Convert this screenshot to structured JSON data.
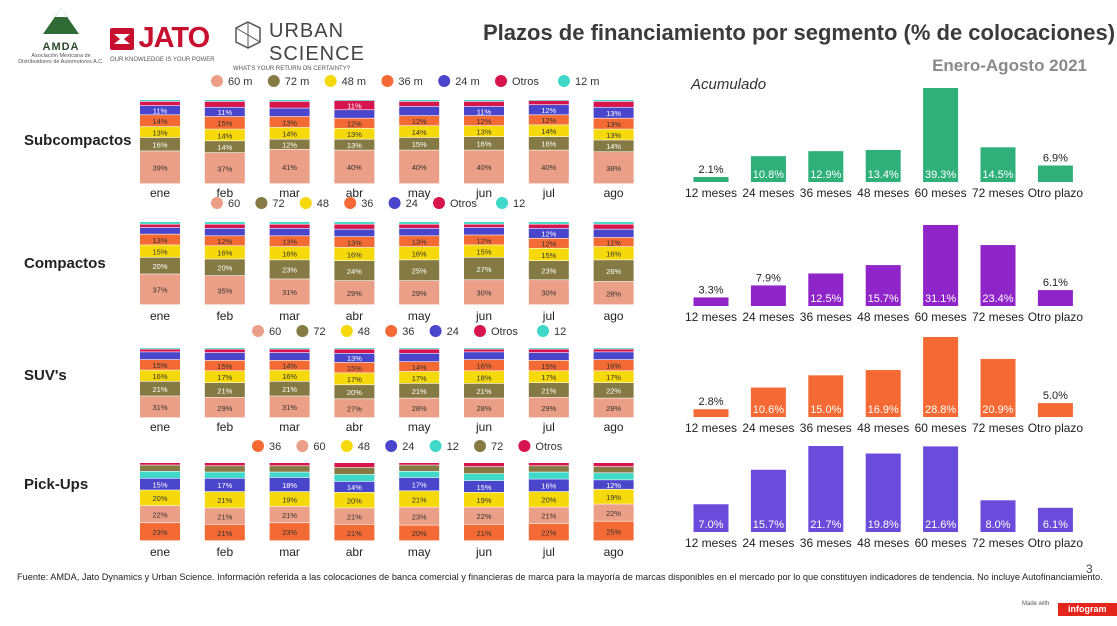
{
  "header": {
    "title": "Plazos de financiamiento por segmento (% de colocaciones)",
    "subtitle": "Enero-Agosto  2021",
    "acumulado_label": "Acumulado"
  },
  "logos": {
    "amda_name": "AMDA",
    "amda_sub": "Asociación Mexicana de Distribuidores de Automotores A.C.",
    "jato_name": "JATO",
    "jato_tag": "OUR KNOWLEDGE IS YOUR POWER",
    "urban_name": "URBAN SCIENCE",
    "urban_tag": "WHAT'S YOUR RETURN ON CERTAINTY?"
  },
  "footer": {
    "source": "Fuente: AMDA, Jato Dynamics y Urban Science. Información referida a las colocaciones de banca comercial y financieras de marca para la mayoría de marcas disponibles en el mercado por lo que constituyen indicadores de tendencia. No incluye Autofinanciamiento.",
    "page_number": "3",
    "made_with": "Made with",
    "brand": "infogram"
  },
  "colors": {
    "60": "#ea9f86",
    "72": "#857a44",
    "48": "#f6d90b",
    "36": "#f46a34",
    "24": "#4a46cc",
    "Otros": "#d6154f",
    "12": "#3fd8c9"
  },
  "chart_data": [
    {
      "type": "bar",
      "stacked": true,
      "segment": "Subcompactos",
      "categories": [
        "ene",
        "feb",
        "mar",
        "abr",
        "may",
        "jun",
        "jul",
        "ago"
      ],
      "legend": [
        "60 m",
        "72 m",
        "48 m",
        "36 m",
        "24 m",
        "Otros",
        "12 m"
      ],
      "series": [
        {
          "key": "60",
          "name": "60 m",
          "values": [
            39,
            37,
            41,
            40,
            40,
            40,
            40,
            38
          ]
        },
        {
          "key": "72",
          "name": "72 m",
          "values": [
            16,
            14,
            12,
            13,
            15,
            16,
            16,
            14
          ]
        },
        {
          "key": "48",
          "name": "48 m",
          "values": [
            13,
            14,
            14,
            13,
            14,
            13,
            14,
            13
          ]
        },
        {
          "key": "36",
          "name": "36 m",
          "values": [
            14,
            15,
            13,
            12,
            12,
            12,
            12,
            13
          ]
        },
        {
          "key": "24",
          "name": "24 m",
          "values": [
            11,
            11,
            10,
            10,
            11,
            11,
            12,
            13
          ]
        },
        {
          "key": "Otros",
          "name": "Otros",
          "values": [
            5,
            7,
            8,
            11,
            6,
            6,
            5,
            7
          ]
        },
        {
          "key": "12",
          "name": "12 m",
          "values": [
            2,
            2,
            2,
            1,
            2,
            2,
            1,
            2
          ]
        }
      ],
      "labels_shown": {
        "60": [
          39,
          37,
          41,
          40,
          40,
          40,
          40,
          38
        ],
        "72": [
          16,
          14,
          12,
          13,
          15,
          16,
          16,
          14
        ],
        "48": [
          13,
          14,
          14,
          13,
          14,
          13,
          14,
          13
        ],
        "36": [
          14,
          15,
          13,
          12,
          12,
          12,
          12,
          13
        ],
        "24": [
          11,
          11,
          null,
          null,
          null,
          11,
          12,
          13
        ],
        "Otros": [
          null,
          null,
          null,
          11,
          null,
          null,
          null,
          null
        ]
      },
      "accumulated": {
        "categories": [
          "12 meses",
          "24 meses",
          "36 meses",
          "48 meses",
          "60 meses",
          "72 meses",
          "Otro plazo"
        ],
        "values": [
          2.1,
          10.8,
          12.9,
          13.4,
          39.3,
          14.5,
          6.9
        ],
        "labels": [
          "2.1%",
          "10.8%",
          "12.9%",
          "13.4%",
          "39.3%",
          "14.5%",
          "6.9%"
        ],
        "color": "#2fb07a"
      }
    },
    {
      "type": "bar",
      "stacked": true,
      "segment": "Compactos",
      "categories": [
        "ene",
        "feb",
        "mar",
        "abr",
        "may",
        "jun",
        "jul",
        "ago"
      ],
      "legend": [
        "60",
        "72",
        "48",
        "36",
        "24",
        "Otros",
        "12"
      ],
      "series": [
        {
          "key": "60",
          "name": "60",
          "values": [
            37,
            35,
            31,
            29,
            29,
            30,
            30,
            28
          ]
        },
        {
          "key": "72",
          "name": "72",
          "values": [
            20,
            20,
            23,
            24,
            25,
            27,
            23,
            26
          ]
        },
        {
          "key": "48",
          "name": "48",
          "values": [
            15,
            16,
            16,
            16,
            16,
            15,
            15,
            16
          ]
        },
        {
          "key": "36",
          "name": "36",
          "values": [
            13,
            12,
            13,
            13,
            13,
            12,
            12,
            11
          ]
        },
        {
          "key": "24",
          "name": "24",
          "values": [
            8,
            9,
            9,
            9,
            9,
            9,
            12,
            10
          ]
        },
        {
          "key": "Otros",
          "name": "Otros",
          "values": [
            4,
            5,
            5,
            6,
            5,
            4,
            5,
            6
          ]
        },
        {
          "key": "12",
          "name": "12",
          "values": [
            3,
            3,
            3,
            3,
            3,
            3,
            3,
            3
          ]
        }
      ],
      "labels_shown": {
        "60": [
          37,
          35,
          31,
          29,
          29,
          30,
          30,
          28
        ],
        "72": [
          20,
          20,
          23,
          24,
          25,
          27,
          23,
          26
        ],
        "48": [
          15,
          16,
          16,
          16,
          16,
          15,
          15,
          16
        ],
        "36": [
          13,
          12,
          13,
          13,
          13,
          12,
          12,
          11
        ],
        "24": [
          null,
          null,
          null,
          null,
          null,
          null,
          12,
          null
        ]
      },
      "accumulated": {
        "categories": [
          "12 meses",
          "24 meses",
          "36 meses",
          "48 meses",
          "60 meses",
          "72 meses",
          "Otro plazo"
        ],
        "values": [
          3.3,
          7.9,
          12.5,
          15.7,
          31.1,
          23.4,
          6.1
        ],
        "labels": [
          "3.3%",
          "7.9%",
          "12.5%",
          "15.7%",
          "31.1%",
          "23.4%",
          "6.1%"
        ],
        "color": "#8f25c9"
      }
    },
    {
      "type": "bar",
      "stacked": true,
      "segment": "SUV's",
      "categories": [
        "ene",
        "feb",
        "mar",
        "abr",
        "may",
        "jun",
        "jul",
        "ago"
      ],
      "legend": [
        "60",
        "72",
        "48",
        "36",
        "24",
        "Otros",
        "12"
      ],
      "series": [
        {
          "key": "60",
          "name": "60",
          "values": [
            31,
            29,
            31,
            27,
            28,
            28,
            29,
            28
          ]
        },
        {
          "key": "72",
          "name": "72",
          "values": [
            21,
            21,
            21,
            20,
            21,
            21,
            21,
            22
          ]
        },
        {
          "key": "48",
          "name": "48",
          "values": [
            16,
            17,
            16,
            17,
            17,
            18,
            17,
            17
          ]
        },
        {
          "key": "36",
          "name": "36",
          "values": [
            15,
            15,
            14,
            15,
            14,
            16,
            15,
            16
          ]
        },
        {
          "key": "24",
          "name": "24",
          "values": [
            11,
            11,
            11,
            13,
            12,
            11,
            11,
            11
          ]
        },
        {
          "key": "Otros",
          "name": "Otros",
          "values": [
            4,
            5,
            5,
            6,
            6,
            4,
            5,
            4
          ]
        },
        {
          "key": "12",
          "name": "12",
          "values": [
            2,
            2,
            2,
            2,
            2,
            2,
            2,
            2
          ]
        }
      ],
      "labels_shown": {
        "60": [
          31,
          29,
          31,
          27,
          28,
          28,
          29,
          28
        ],
        "72": [
          21,
          21,
          21,
          20,
          21,
          21,
          21,
          22
        ],
        "48": [
          16,
          17,
          16,
          17,
          17,
          18,
          17,
          17
        ],
        "36": [
          15,
          15,
          14,
          15,
          14,
          16,
          15,
          16
        ],
        "24": [
          null,
          null,
          null,
          13,
          null,
          null,
          null,
          null
        ]
      },
      "accumulated": {
        "categories": [
          "12 meses",
          "24 meses",
          "36 meses",
          "48 meses",
          "60 meses",
          "72 meses",
          "Otro plazo"
        ],
        "values": [
          2.8,
          10.6,
          15.0,
          16.9,
          28.8,
          20.9,
          5.0
        ],
        "labels": [
          "2.8%",
          "10.6%",
          "15.0%",
          "16.9%",
          "28.8%",
          "20.9%",
          "5.0%"
        ],
        "color": "#f56a34"
      }
    },
    {
      "type": "bar",
      "stacked": true,
      "segment": "Pick-Ups",
      "categories": [
        "ene",
        "feb",
        "mar",
        "abr",
        "may",
        "jun",
        "jul",
        "ago"
      ],
      "legend": [
        "36",
        "60",
        "48",
        "24",
        "12",
        "72",
        "Otros"
      ],
      "series": [
        {
          "key": "36",
          "name": "36",
          "values": [
            23,
            21,
            23,
            21,
            20,
            21,
            22,
            25
          ]
        },
        {
          "key": "60",
          "name": "60",
          "values": [
            22,
            21,
            21,
            21,
            23,
            22,
            21,
            22
          ]
        },
        {
          "key": "48",
          "name": "48",
          "values": [
            20,
            21,
            19,
            20,
            21,
            19,
            20,
            19
          ]
        },
        {
          "key": "24",
          "name": "24",
          "values": [
            15,
            17,
            18,
            14,
            17,
            15,
            16,
            12
          ]
        },
        {
          "key": "12",
          "name": "12",
          "values": [
            9,
            8,
            7,
            9,
            8,
            9,
            9,
            9
          ]
        },
        {
          "key": "72",
          "name": "72",
          "values": [
            8,
            8,
            8,
            9,
            8,
            9,
            8,
            8
          ]
        },
        {
          "key": "Otros",
          "name": "Otros",
          "values": [
            3,
            4,
            4,
            6,
            3,
            5,
            4,
            5
          ]
        }
      ],
      "labels_shown": {
        "36": [
          23,
          21,
          23,
          21,
          20,
          21,
          22,
          25
        ],
        "60": [
          22,
          21,
          21,
          21,
          23,
          22,
          21,
          22
        ],
        "48": [
          20,
          21,
          19,
          20,
          21,
          19,
          20,
          19
        ],
        "24": [
          15,
          17,
          18,
          14,
          17,
          15,
          16,
          12
        ]
      },
      "accumulated": {
        "categories": [
          "12 meses",
          "24 meses",
          "36 meses",
          "48 meses",
          "60 meses",
          "72 meses",
          "Otro plazo"
        ],
        "values": [
          7.0,
          15.7,
          21.7,
          19.8,
          21.6,
          8.0,
          6.1
        ],
        "labels": [
          "7.0%",
          "15.7%",
          "21.7%",
          "19.8%",
          "21.6%",
          "8.0%",
          "6.1%"
        ],
        "color": "#6a4bdb"
      }
    }
  ]
}
